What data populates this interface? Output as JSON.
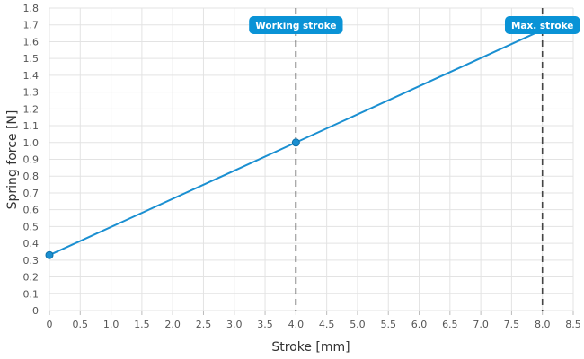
{
  "chart_data": {
    "type": "line",
    "xlabel": "Stroke [mm]",
    "ylabel": "Spring force [N]",
    "xlim": [
      0,
      8.5
    ],
    "ylim": [
      0,
      1.8
    ],
    "x_ticks": [
      "0",
      "0.5",
      "1.0",
      "1.5",
      "2.0",
      "2.5",
      "3.0",
      "3.5",
      "4.0",
      "4.5",
      "5.0",
      "5.5",
      "6.0",
      "6.5",
      "7.0",
      "7.5",
      "8.0",
      "8.5"
    ],
    "y_ticks": [
      "0",
      "0.1",
      "0.2",
      "0.3",
      "0.4",
      "0.5",
      "0.6",
      "0.7",
      "0.8",
      "0.9",
      "1.0",
      "1.1",
      "1.2",
      "1.3",
      "1.4",
      "1.5",
      "1.6",
      "1.7",
      "1.8"
    ],
    "grid": true,
    "series": [
      {
        "x": [
          0,
          4.0,
          8.0
        ],
        "y": [
          0.33,
          1.0,
          1.67
        ],
        "color": "#1a8fd1"
      }
    ],
    "points": [
      {
        "x": 0,
        "y": 0.33
      },
      {
        "x": 4.0,
        "y": 1.0
      }
    ],
    "vertical_markers": [
      {
        "x": 4.0,
        "label": "Working stroke"
      },
      {
        "x": 8.0,
        "label": "Max. stroke"
      }
    ],
    "colors": {
      "line": "#1a8fd1",
      "marker_badge": "#0a93d6",
      "marker_line": "#444444",
      "grid": "#e3e3e3"
    }
  }
}
